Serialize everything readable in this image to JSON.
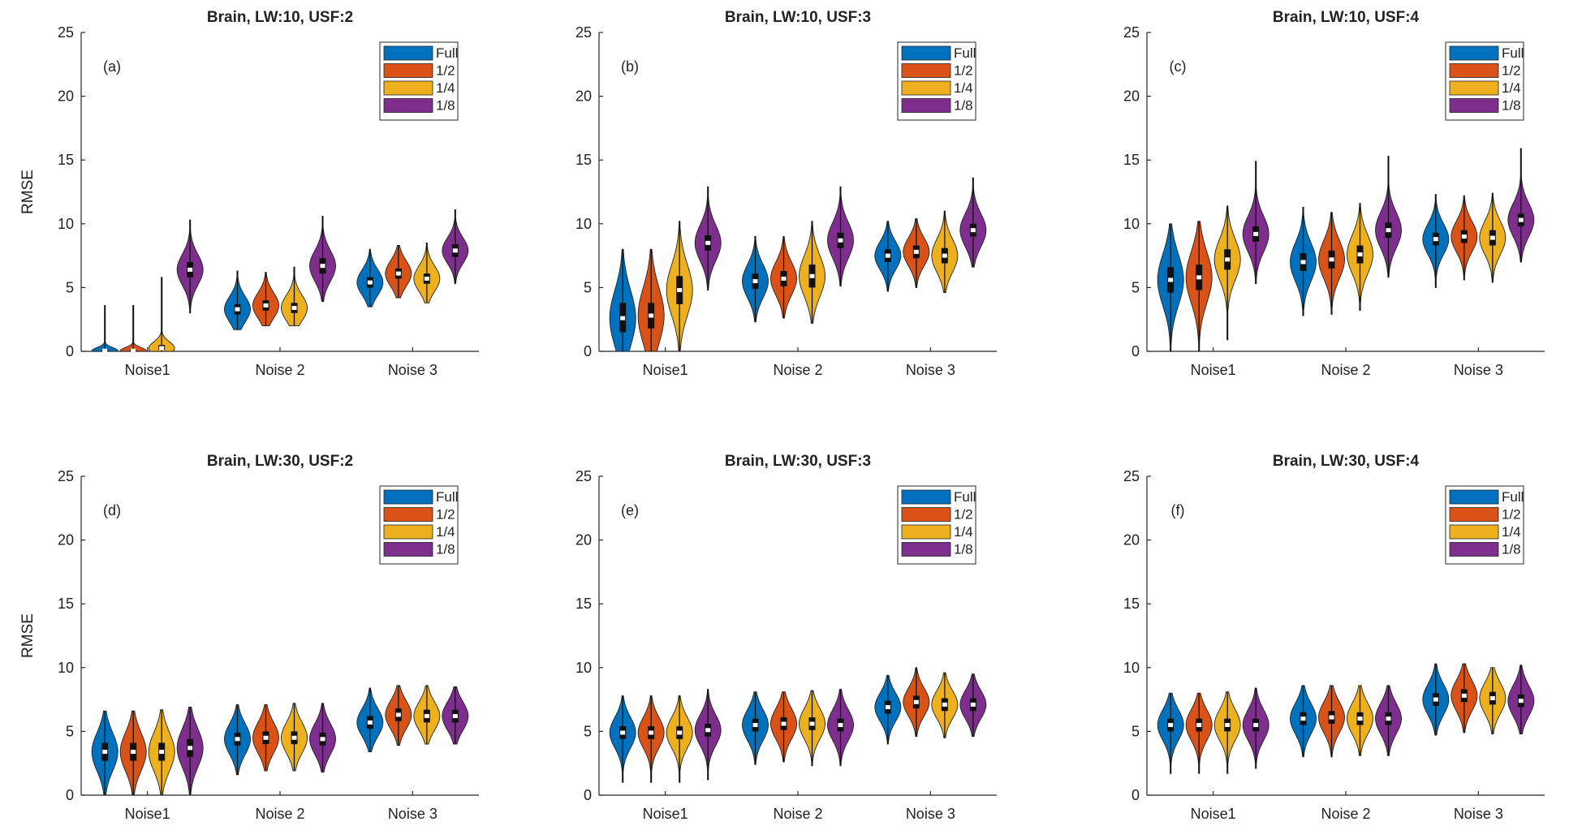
{
  "figure": {
    "ylabel": "RMSE"
  },
  "legend_colors": [
    "#0072BD",
    "#D95319",
    "#EDB120",
    "#7E2F8E"
  ],
  "chart_data": [
    {
      "type": "violin",
      "title": "Brain, LW:10, USF:2",
      "panel_label": "(a)",
      "xlabel": "",
      "ylabel": "RMSE",
      "ylim": [
        0,
        25
      ],
      "yticks": [
        0,
        5,
        10,
        15,
        20,
        25
      ],
      "categories": [
        "Noise1",
        "Noise 2",
        "Noise 3"
      ],
      "legend": "top-right",
      "series": [
        {
          "name": "Full",
          "stats": [
            {
              "median": 0.05,
              "q1": 0.02,
              "q3": 0.1,
              "min": 0,
              "max": 3.6,
              "spread": 0.25
            },
            {
              "median": 3.3,
              "q1": 2.9,
              "q3": 3.7,
              "min": 1.7,
              "max": 6.3,
              "spread": 1.0
            },
            {
              "median": 5.4,
              "q1": 5.0,
              "q3": 5.8,
              "min": 3.5,
              "max": 8.0,
              "spread": 1.0
            }
          ]
        },
        {
          "name": "1/2",
          "stats": [
            {
              "median": 0.05,
              "q1": 0.02,
              "q3": 0.1,
              "min": 0,
              "max": 3.6,
              "spread": 0.25
            },
            {
              "median": 3.6,
              "q1": 3.2,
              "q3": 4.0,
              "min": 2.0,
              "max": 6.2,
              "spread": 1.0
            },
            {
              "median": 6.1,
              "q1": 5.7,
              "q3": 6.5,
              "min": 4.2,
              "max": 8.3,
              "spread": 1.0
            }
          ]
        },
        {
          "name": "1/4",
          "stats": [
            {
              "median": 0.25,
              "q1": 0.1,
              "q3": 0.5,
              "min": 0,
              "max": 5.8,
              "spread": 0.5
            },
            {
              "median": 3.4,
              "q1": 3.0,
              "q3": 3.8,
              "min": 2.0,
              "max": 6.6,
              "spread": 1.0
            },
            {
              "median": 5.7,
              "q1": 5.3,
              "q3": 6.1,
              "min": 3.8,
              "max": 8.5,
              "spread": 1.0
            }
          ]
        },
        {
          "name": "1/8",
          "stats": [
            {
              "median": 6.4,
              "q1": 5.8,
              "q3": 7.0,
              "min": 3.0,
              "max": 10.3,
              "spread": 1.2
            },
            {
              "median": 6.7,
              "q1": 6.1,
              "q3": 7.3,
              "min": 3.9,
              "max": 10.6,
              "spread": 1.2
            },
            {
              "median": 7.9,
              "q1": 7.4,
              "q3": 8.4,
              "min": 5.3,
              "max": 11.1,
              "spread": 1.0
            }
          ]
        }
      ]
    },
    {
      "type": "violin",
      "title": "Brain, LW:10, USF:3",
      "panel_label": "(b)",
      "xlabel": "",
      "ylabel": "",
      "ylim": [
        0,
        25
      ],
      "yticks": [
        0,
        5,
        10,
        15,
        20,
        25
      ],
      "categories": [
        "Noise1",
        "Noise 2",
        "Noise 3"
      ],
      "legend": "top-right",
      "series": [
        {
          "name": "Full",
          "stats": [
            {
              "median": 2.6,
              "q1": 1.5,
              "q3": 3.8,
              "min": 0,
              "max": 8.0,
              "spread": 2.2
            },
            {
              "median": 5.5,
              "q1": 4.9,
              "q3": 6.1,
              "min": 2.3,
              "max": 9.0,
              "spread": 1.3
            },
            {
              "median": 7.5,
              "q1": 7.0,
              "q3": 8.0,
              "min": 4.7,
              "max": 10.2,
              "spread": 1.1
            }
          ]
        },
        {
          "name": "1/2",
          "stats": [
            {
              "median": 2.8,
              "q1": 1.8,
              "q3": 3.8,
              "min": 0,
              "max": 8.0,
              "spread": 2.2
            },
            {
              "median": 5.7,
              "q1": 5.1,
              "q3": 6.3,
              "min": 2.6,
              "max": 9.0,
              "spread": 1.3
            },
            {
              "median": 7.8,
              "q1": 7.3,
              "q3": 8.3,
              "min": 5.0,
              "max": 10.4,
              "spread": 1.1
            }
          ]
        },
        {
          "name": "1/4",
          "stats": [
            {
              "median": 4.8,
              "q1": 3.7,
              "q3": 5.9,
              "min": 0,
              "max": 10.2,
              "spread": 2.0
            },
            {
              "median": 5.9,
              "q1": 5.0,
              "q3": 6.8,
              "min": 2.2,
              "max": 10.2,
              "spread": 1.6
            },
            {
              "median": 7.5,
              "q1": 6.9,
              "q3": 8.1,
              "min": 4.6,
              "max": 11.0,
              "spread": 1.3
            }
          ]
        },
        {
          "name": "1/8",
          "stats": [
            {
              "median": 8.5,
              "q1": 7.9,
              "q3": 9.1,
              "min": 4.8,
              "max": 12.9,
              "spread": 1.4
            },
            {
              "median": 8.7,
              "q1": 8.1,
              "q3": 9.3,
              "min": 5.1,
              "max": 12.9,
              "spread": 1.4
            },
            {
              "median": 9.5,
              "q1": 9.0,
              "q3": 10.0,
              "min": 6.6,
              "max": 13.6,
              "spread": 1.3
            }
          ]
        }
      ]
    },
    {
      "type": "violin",
      "title": "Brain, LW:10, USF:4",
      "panel_label": "(c)",
      "xlabel": "",
      "ylabel": "",
      "ylim": [
        0,
        25
      ],
      "yticks": [
        0,
        5,
        10,
        15,
        20,
        25
      ],
      "categories": [
        "Noise1",
        "Noise 2",
        "Noise 3"
      ],
      "legend": "top-right",
      "series": [
        {
          "name": "Full",
          "stats": [
            {
              "median": 5.6,
              "q1": 4.6,
              "q3": 6.6,
              "min": 0,
              "max": 10.0,
              "spread": 2.0
            },
            {
              "median": 7.0,
              "q1": 6.3,
              "q3": 7.7,
              "min": 2.8,
              "max": 11.3,
              "spread": 1.5
            },
            {
              "median": 8.8,
              "q1": 8.3,
              "q3": 9.3,
              "min": 5.0,
              "max": 12.3,
              "spread": 1.2
            }
          ]
        },
        {
          "name": "1/2",
          "stats": [
            {
              "median": 5.8,
              "q1": 4.8,
              "q3": 6.8,
              "min": 0,
              "max": 10.2,
              "spread": 2.0
            },
            {
              "median": 7.2,
              "q1": 6.5,
              "q3": 7.9,
              "min": 2.9,
              "max": 10.9,
              "spread": 1.5
            },
            {
              "median": 9.0,
              "q1": 8.5,
              "q3": 9.5,
              "min": 5.6,
              "max": 12.2,
              "spread": 1.2
            }
          ]
        },
        {
          "name": "1/4",
          "stats": [
            {
              "median": 7.2,
              "q1": 6.4,
              "q3": 8.0,
              "min": 0.9,
              "max": 11.4,
              "spread": 1.6
            },
            {
              "median": 7.6,
              "q1": 6.9,
              "q3": 8.3,
              "min": 3.2,
              "max": 11.6,
              "spread": 1.5
            },
            {
              "median": 8.9,
              "q1": 8.3,
              "q3": 9.5,
              "min": 5.4,
              "max": 12.4,
              "spread": 1.3
            }
          ]
        },
        {
          "name": "1/8",
          "stats": [
            {
              "median": 9.2,
              "q1": 8.6,
              "q3": 9.8,
              "min": 5.3,
              "max": 14.9,
              "spread": 1.4
            },
            {
              "median": 9.5,
              "q1": 8.9,
              "q3": 10.1,
              "min": 5.8,
              "max": 15.3,
              "spread": 1.4
            },
            {
              "median": 10.3,
              "q1": 9.8,
              "q3": 10.8,
              "min": 7.0,
              "max": 15.9,
              "spread": 1.3
            }
          ]
        }
      ]
    },
    {
      "type": "violin",
      "title": "Brain, LW:30, USF:2",
      "panel_label": "(d)",
      "xlabel": "",
      "ylabel": "RMSE",
      "ylim": [
        0,
        25
      ],
      "yticks": [
        0,
        5,
        10,
        15,
        20,
        25
      ],
      "categories": [
        "Noise1",
        "Noise 2",
        "Noise 3"
      ],
      "legend": "top-right",
      "series": [
        {
          "name": "Full",
          "stats": [
            {
              "median": 3.4,
              "q1": 2.7,
              "q3": 4.1,
              "min": 0,
              "max": 6.6,
              "spread": 1.5
            },
            {
              "median": 4.4,
              "q1": 3.9,
              "q3": 4.9,
              "min": 1.6,
              "max": 7.1,
              "spread": 1.2
            },
            {
              "median": 5.7,
              "q1": 5.2,
              "q3": 6.2,
              "min": 3.4,
              "max": 8.4,
              "spread": 1.1
            }
          ]
        },
        {
          "name": "1/2",
          "stats": [
            {
              "median": 3.4,
              "q1": 2.7,
              "q3": 4.1,
              "min": 0,
              "max": 6.6,
              "spread": 1.5
            },
            {
              "median": 4.5,
              "q1": 4.0,
              "q3": 5.0,
              "min": 1.9,
              "max": 7.1,
              "spread": 1.2
            },
            {
              "median": 6.3,
              "q1": 5.8,
              "q3": 6.8,
              "min": 3.9,
              "max": 8.6,
              "spread": 1.1
            }
          ]
        },
        {
          "name": "1/4",
          "stats": [
            {
              "median": 3.4,
              "q1": 2.7,
              "q3": 4.1,
              "min": 0,
              "max": 6.7,
              "spread": 1.5
            },
            {
              "median": 4.5,
              "q1": 4.0,
              "q3": 5.0,
              "min": 1.9,
              "max": 7.2,
              "spread": 1.2
            },
            {
              "median": 6.2,
              "q1": 5.7,
              "q3": 6.7,
              "min": 4.0,
              "max": 8.6,
              "spread": 1.1
            }
          ]
        },
        {
          "name": "1/8",
          "stats": [
            {
              "median": 3.7,
              "q1": 3.0,
              "q3": 4.4,
              "min": 0,
              "max": 6.9,
              "spread": 1.5
            },
            {
              "median": 4.4,
              "q1": 3.9,
              "q3": 4.9,
              "min": 1.8,
              "max": 7.2,
              "spread": 1.2
            },
            {
              "median": 6.2,
              "q1": 5.7,
              "q3": 6.7,
              "min": 4.0,
              "max": 8.5,
              "spread": 1.1
            }
          ]
        }
      ]
    },
    {
      "type": "violin",
      "title": "Brain, LW:30, USF:3",
      "panel_label": "(e)",
      "xlabel": "",
      "ylabel": "",
      "ylim": [
        0,
        25
      ],
      "yticks": [
        0,
        5,
        10,
        15,
        20,
        25
      ],
      "categories": [
        "Noise1",
        "Noise 2",
        "Noise 3"
      ],
      "legend": "top-right",
      "series": [
        {
          "name": "Full",
          "stats": [
            {
              "median": 4.9,
              "q1": 4.4,
              "q3": 5.4,
              "min": 1.0,
              "max": 7.8,
              "spread": 1.2
            },
            {
              "median": 5.5,
              "q1": 5.0,
              "q3": 6.0,
              "min": 2.4,
              "max": 8.1,
              "spread": 1.2
            },
            {
              "median": 6.9,
              "q1": 6.4,
              "q3": 7.4,
              "min": 4.0,
              "max": 9.4,
              "spread": 1.1
            }
          ]
        },
        {
          "name": "1/2",
          "stats": [
            {
              "median": 4.9,
              "q1": 4.4,
              "q3": 5.4,
              "min": 1.0,
              "max": 7.8,
              "spread": 1.2
            },
            {
              "median": 5.6,
              "q1": 5.1,
              "q3": 6.1,
              "min": 2.6,
              "max": 8.1,
              "spread": 1.2
            },
            {
              "median": 7.3,
              "q1": 6.8,
              "q3": 7.8,
              "min": 4.6,
              "max": 10.0,
              "spread": 1.1
            }
          ]
        },
        {
          "name": "1/4",
          "stats": [
            {
              "median": 4.9,
              "q1": 4.4,
              "q3": 5.4,
              "min": 1.0,
              "max": 7.8,
              "spread": 1.2
            },
            {
              "median": 5.6,
              "q1": 5.1,
              "q3": 6.1,
              "min": 2.3,
              "max": 8.2,
              "spread": 1.2
            },
            {
              "median": 7.1,
              "q1": 6.6,
              "q3": 7.6,
              "min": 4.5,
              "max": 9.6,
              "spread": 1.1
            }
          ]
        },
        {
          "name": "1/8",
          "stats": [
            {
              "median": 5.1,
              "q1": 4.6,
              "q3": 5.6,
              "min": 1.2,
              "max": 8.3,
              "spread": 1.2
            },
            {
              "median": 5.5,
              "q1": 5.0,
              "q3": 6.0,
              "min": 2.3,
              "max": 8.3,
              "spread": 1.2
            },
            {
              "median": 7.1,
              "q1": 6.6,
              "q3": 7.6,
              "min": 4.6,
              "max": 9.5,
              "spread": 1.1
            }
          ]
        }
      ]
    },
    {
      "type": "violin",
      "title": "Brain, LW:30, USF:4",
      "panel_label": "(f)",
      "xlabel": "",
      "ylabel": "",
      "ylim": [
        0,
        25
      ],
      "yticks": [
        0,
        5,
        10,
        15,
        20,
        25
      ],
      "categories": [
        "Noise1",
        "Noise 2",
        "Noise 3"
      ],
      "legend": "top-right",
      "series": [
        {
          "name": "Full",
          "stats": [
            {
              "median": 5.5,
              "q1": 5.0,
              "q3": 6.0,
              "min": 1.7,
              "max": 8.0,
              "spread": 1.2
            },
            {
              "median": 6.0,
              "q1": 5.5,
              "q3": 6.5,
              "min": 3.0,
              "max": 8.6,
              "spread": 1.2
            },
            {
              "median": 7.5,
              "q1": 7.0,
              "q3": 8.0,
              "min": 4.7,
              "max": 10.3,
              "spread": 1.2
            }
          ]
        },
        {
          "name": "1/2",
          "stats": [
            {
              "median": 5.5,
              "q1": 5.0,
              "q3": 6.0,
              "min": 1.7,
              "max": 8.0,
              "spread": 1.2
            },
            {
              "median": 6.1,
              "q1": 5.6,
              "q3": 6.6,
              "min": 3.0,
              "max": 8.6,
              "spread": 1.2
            },
            {
              "median": 7.8,
              "q1": 7.3,
              "q3": 8.3,
              "min": 4.9,
              "max": 10.3,
              "spread": 1.2
            }
          ]
        },
        {
          "name": "1/4",
          "stats": [
            {
              "median": 5.5,
              "q1": 5.0,
              "q3": 6.0,
              "min": 1.7,
              "max": 8.1,
              "spread": 1.2
            },
            {
              "median": 6.0,
              "q1": 5.5,
              "q3": 6.5,
              "min": 3.1,
              "max": 8.6,
              "spread": 1.2
            },
            {
              "median": 7.6,
              "q1": 7.1,
              "q3": 8.1,
              "min": 4.8,
              "max": 10.0,
              "spread": 1.2
            }
          ]
        },
        {
          "name": "1/8",
          "stats": [
            {
              "median": 5.5,
              "q1": 5.0,
              "q3": 6.0,
              "min": 2.1,
              "max": 8.4,
              "spread": 1.2
            },
            {
              "median": 6.0,
              "q1": 5.5,
              "q3": 6.5,
              "min": 3.1,
              "max": 8.6,
              "spread": 1.2
            },
            {
              "median": 7.4,
              "q1": 6.9,
              "q3": 7.9,
              "min": 4.8,
              "max": 10.2,
              "spread": 1.2
            }
          ]
        }
      ]
    }
  ]
}
